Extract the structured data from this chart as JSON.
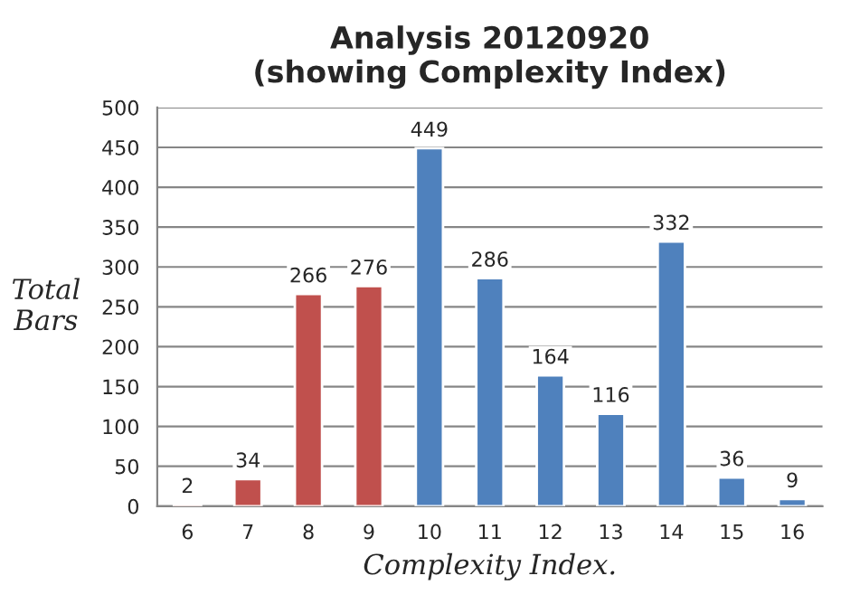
{
  "chart_data": {
    "type": "bar",
    "title": "Analysis 20120920\n(showing Complexity Index)",
    "xlabel": "Complexity Index.",
    "ylabel": "Total\nBars",
    "categories": [
      "6",
      "7",
      "8",
      "9",
      "10",
      "11",
      "12",
      "13",
      "14",
      "15",
      "16"
    ],
    "values": [
      2,
      34,
      266,
      276,
      449,
      286,
      164,
      116,
      332,
      36,
      9
    ],
    "colors": [
      "#c0504d",
      "#c0504d",
      "#c0504d",
      "#c0504d",
      "#4f81bd",
      "#4f81bd",
      "#4f81bd",
      "#4f81bd",
      "#4f81bd",
      "#4f81bd",
      "#4f81bd"
    ],
    "ylim": [
      0,
      500
    ],
    "yticks": [
      0,
      50,
      100,
      150,
      200,
      250,
      300,
      350,
      400,
      450,
      500
    ],
    "grid": "y",
    "data_labels": true
  }
}
